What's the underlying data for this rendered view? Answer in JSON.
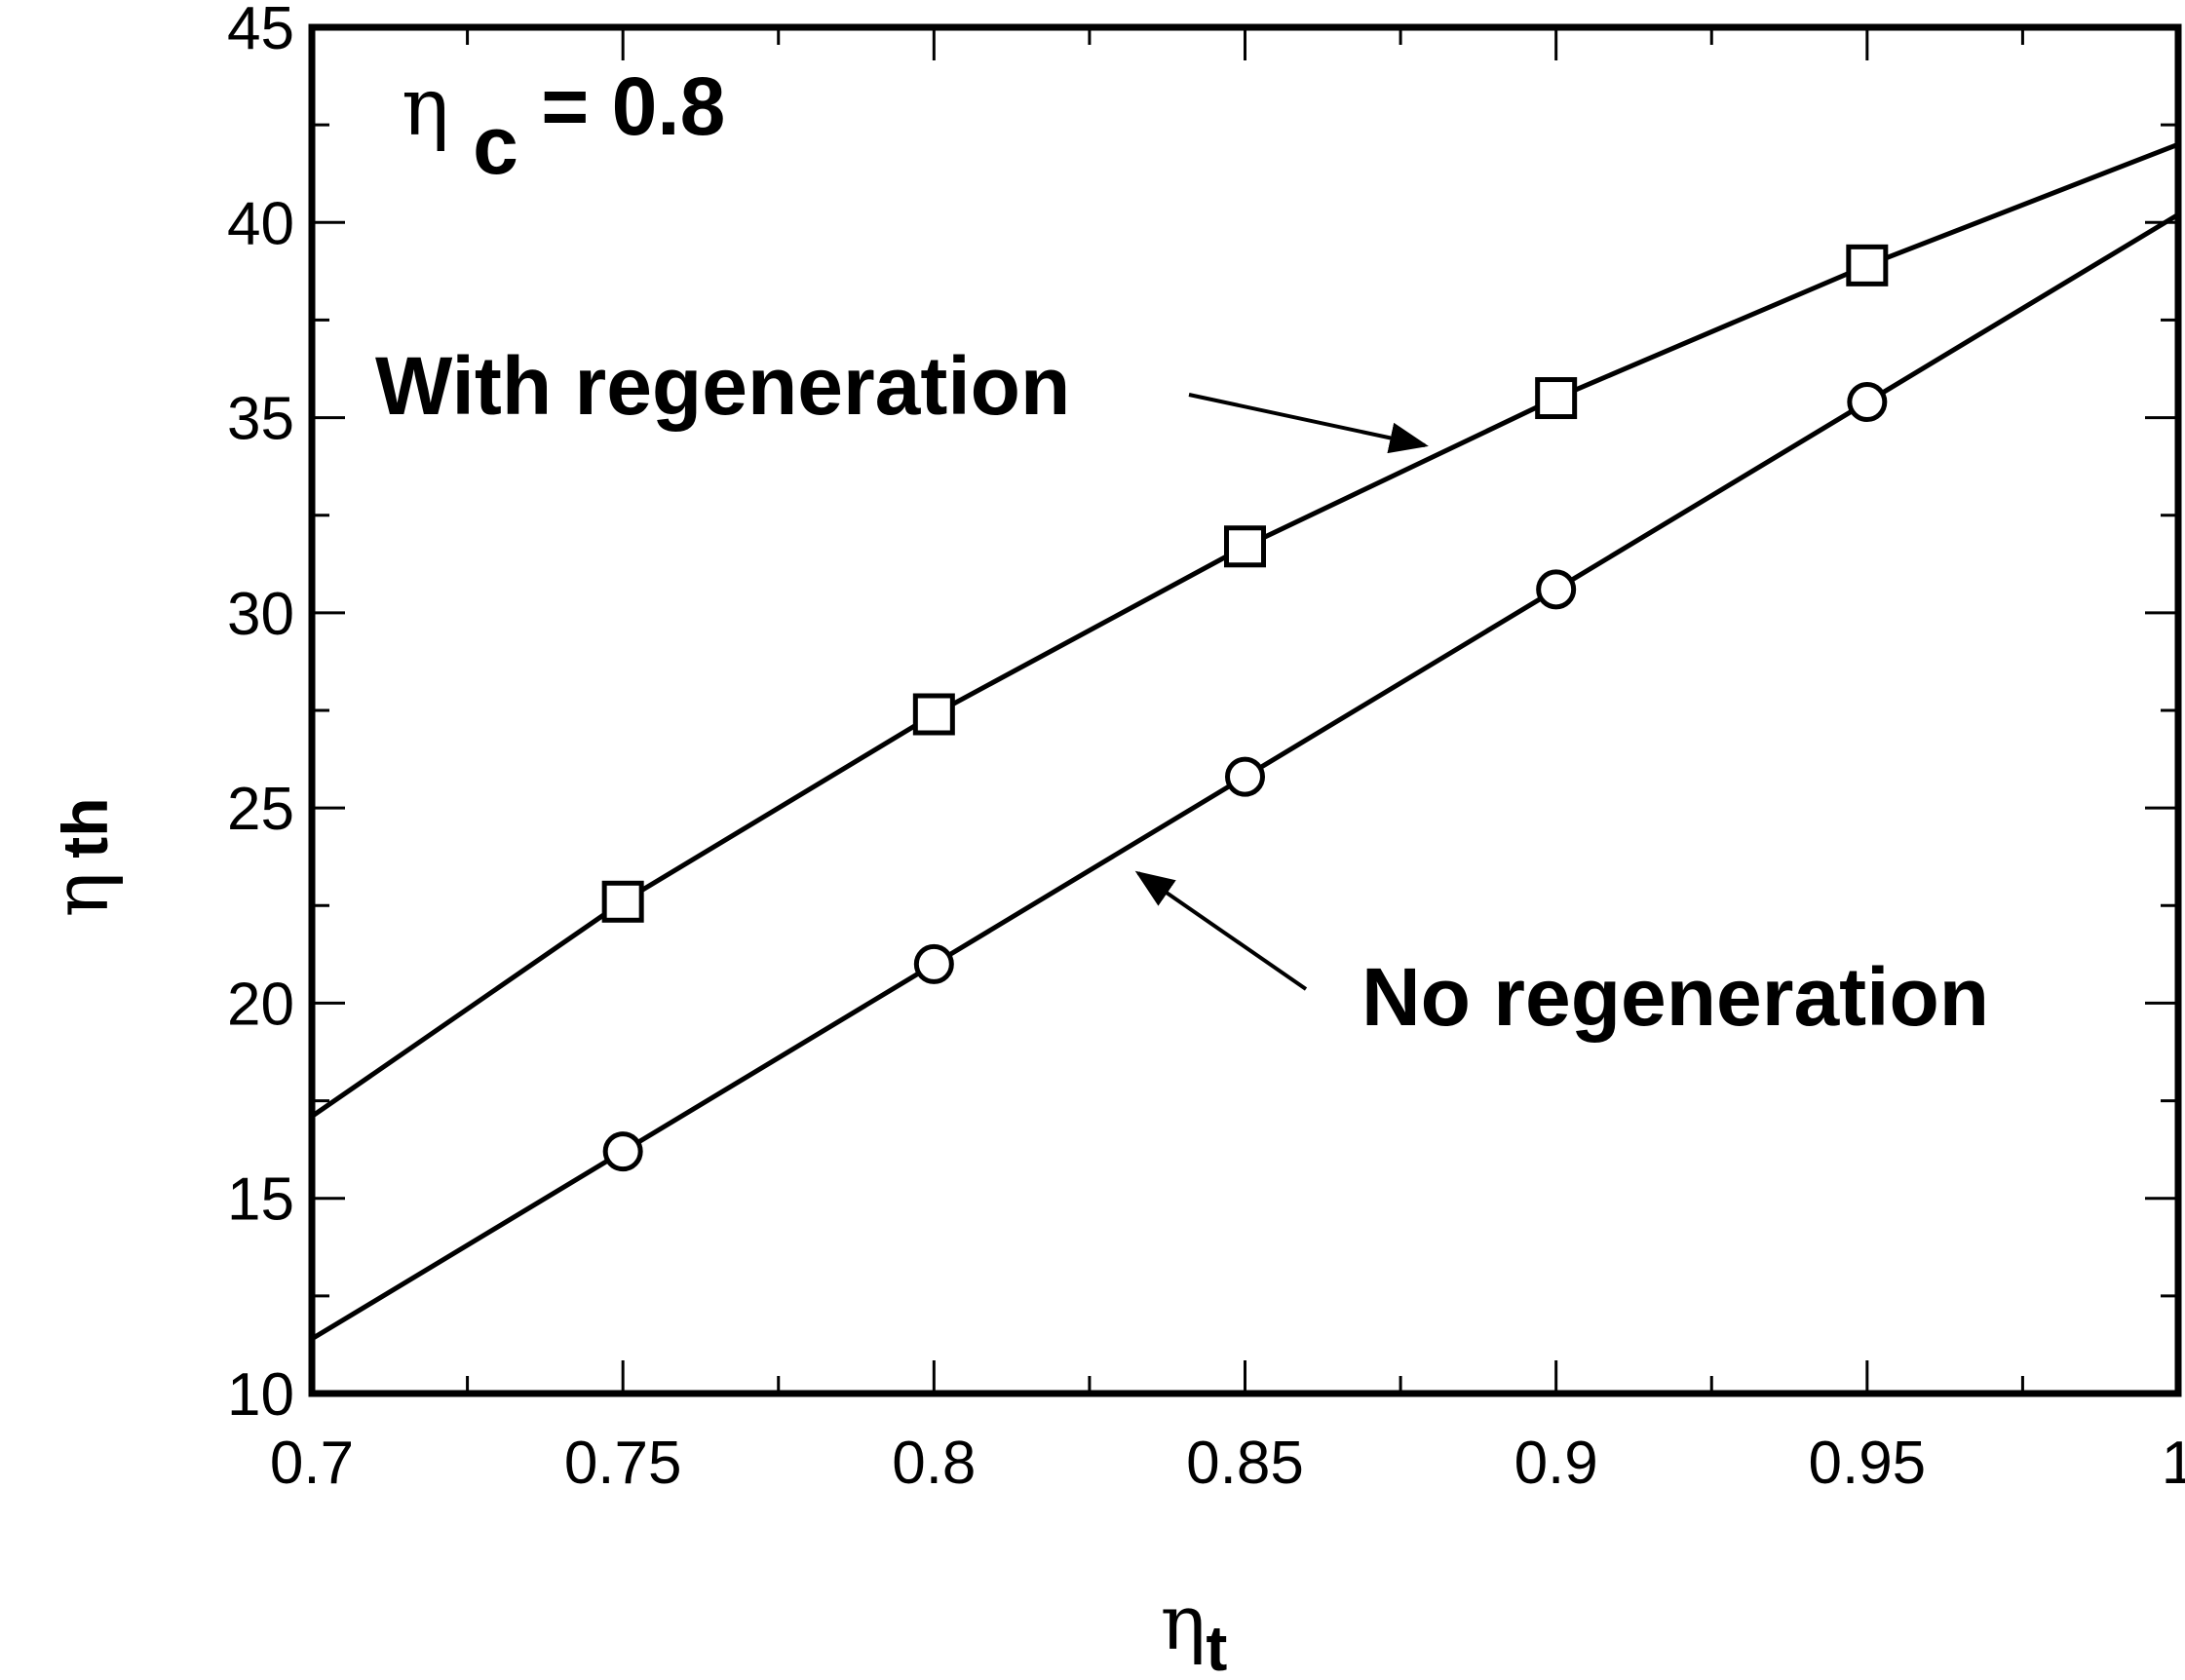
{
  "chart_data": {
    "type": "line",
    "title": "",
    "xlabel": {
      "symbol": "η",
      "subscript": "t"
    },
    "ylabel": {
      "symbol": "η",
      "subscript": "th"
    },
    "xlim": [
      0.7,
      1.0
    ],
    "ylim": [
      10,
      45
    ],
    "x_ticks": [
      0.7,
      0.75,
      0.8,
      0.85,
      0.9,
      0.95,
      1.0
    ],
    "x_tick_labels": [
      "0.7",
      "0.75",
      "0.8",
      "0.85",
      "0.9",
      "0.95",
      "1"
    ],
    "y_ticks": [
      10,
      15,
      20,
      25,
      30,
      35,
      40,
      45
    ],
    "y_tick_labels": [
      "10",
      "15",
      "20",
      "25",
      "30",
      "35",
      "40",
      "45"
    ],
    "grid": false,
    "series": [
      {
        "name": "With regeneration",
        "marker": "square",
        "color": "#000000",
        "line_x": [
          0.7,
          0.75,
          0.8,
          0.85,
          0.9,
          0.95,
          1.0
        ],
        "line_y": [
          17.1,
          22.6,
          27.4,
          31.7,
          35.5,
          38.9,
          42.0
        ],
        "marker_x": [
          0.75,
          0.8,
          0.85,
          0.9,
          0.95
        ],
        "marker_y": [
          22.6,
          27.4,
          31.7,
          35.5,
          38.9
        ]
      },
      {
        "name": "No regeneration",
        "marker": "circle",
        "color": "#000000",
        "line_x": [
          0.7,
          0.75,
          0.8,
          0.85,
          0.9,
          0.95,
          1.0
        ],
        "line_y": [
          11.4,
          16.2,
          21.0,
          25.8,
          30.6,
          35.4,
          40.2
        ],
        "marker_x": [
          0.75,
          0.8,
          0.85,
          0.9,
          0.95
        ],
        "marker_y": [
          16.2,
          21.0,
          25.8,
          30.6,
          35.4
        ]
      }
    ],
    "annotations": [
      {
        "text": "η",
        "subscript": "c",
        "suffix": " = 0.8",
        "location": "top-left"
      },
      {
        "text": "With regeneration",
        "points_to": "With regeneration",
        "at": [
          0.888,
          33.8
        ]
      },
      {
        "text": "No regeneration",
        "points_to": "No regeneration",
        "at": [
          0.826,
          24.0
        ]
      }
    ]
  }
}
